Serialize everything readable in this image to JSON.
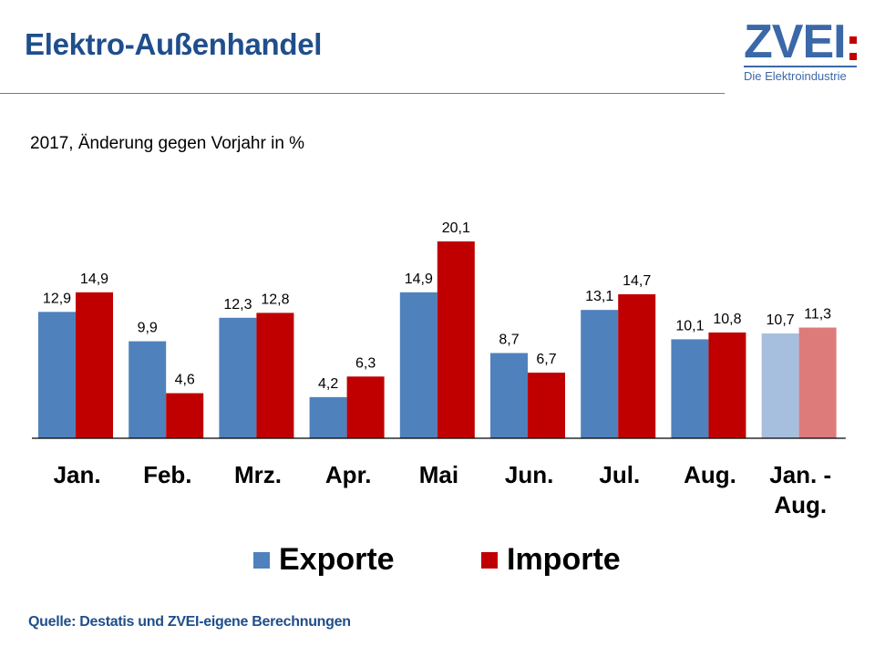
{
  "header": {
    "title": "Elektro-Außenhandel",
    "logo_main": "ZVEI",
    "logo_sub": "Die Elektroindustrie"
  },
  "subtitle": "2017,  Änderung gegen Vorjahr in %",
  "source": "Quelle: Destatis und ZVEI-eigene Berechnungen",
  "colors": {
    "title": "#1f4e8c",
    "exporte": "#4f81bd",
    "importe": "#c00000",
    "exporte_light": "#a7bfdf",
    "importe_light": "#dd7b7b"
  },
  "chart_data": {
    "type": "bar",
    "categories": [
      [
        "Jan."
      ],
      [
        "Feb."
      ],
      [
        "Mrz."
      ],
      [
        "Apr."
      ],
      [
        "Mai"
      ],
      [
        "Jun."
      ],
      [
        "Jul."
      ],
      [
        "Aug."
      ],
      [
        "Jan. -",
        "Aug."
      ]
    ],
    "series": [
      {
        "name": "Exporte",
        "values": [
          12.9,
          9.9,
          12.3,
          4.2,
          14.9,
          8.7,
          13.1,
          10.1,
          10.7
        ],
        "labels": [
          "12,9",
          "9,9",
          "12,3",
          "4,2",
          "14,9",
          "8,7",
          "13,1",
          "10,1",
          "10,7"
        ]
      },
      {
        "name": "Importe",
        "values": [
          14.9,
          4.6,
          12.8,
          6.3,
          20.1,
          6.7,
          14.7,
          10.8,
          11.3
        ],
        "labels": [
          "14,9",
          "4,6",
          "12,8",
          "6,3",
          "20,1",
          "6,7",
          "14,7",
          "10,8",
          "11,3"
        ]
      }
    ],
    "highlight_last_category": true,
    "ylim": [
      0,
      22
    ],
    "legend": "bottom",
    "grid": false
  }
}
